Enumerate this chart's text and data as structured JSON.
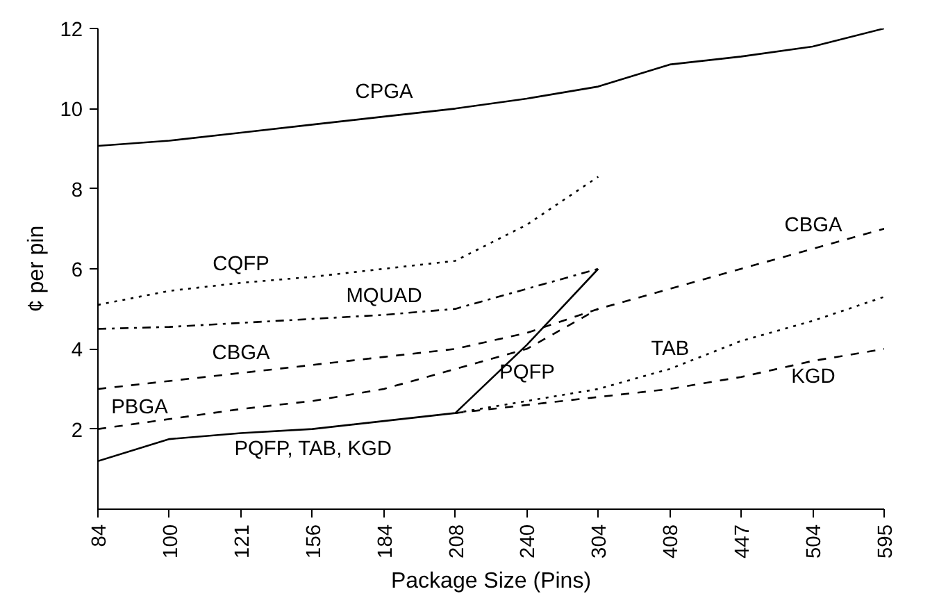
{
  "chart_data": {
    "type": "line",
    "xlabel": "Package Size (Pins)",
    "ylabel": "¢ per pin",
    "categories": [
      "84",
      "100",
      "121",
      "156",
      "184",
      "208",
      "240",
      "304",
      "408",
      "447",
      "504",
      "595"
    ],
    "ylim": [
      0,
      12
    ],
    "yticks": [
      2,
      4,
      6,
      8,
      10,
      12
    ],
    "grid": false,
    "marker": "none",
    "series": [
      {
        "color": "#000000",
        "line_style": "solid",
        "values": [
          9.07,
          9.2,
          9.4,
          9.6,
          9.8,
          10.0,
          10.25,
          10.55,
          11.1,
          11.3,
          11.55,
          12.0
        ]
      },
      {
        "color": "#000000",
        "line_style": "dotted",
        "values": [
          5.1,
          5.45,
          5.65,
          5.8,
          6.0,
          6.2,
          7.1,
          8.3,
          null,
          null,
          null,
          null
        ]
      },
      {
        "color": "#000000",
        "line_style": "dashdot",
        "values": [
          4.5,
          4.55,
          4.65,
          4.75,
          4.85,
          5.0,
          5.5,
          6.0,
          null,
          null,
          null,
          null
        ]
      },
      {
        "color": "#000000",
        "line_style": "dashed",
        "values": [
          3.0,
          3.2,
          3.4,
          3.6,
          3.8,
          4.0,
          4.4,
          5.0,
          5.5,
          6.0,
          6.5,
          7.0
        ]
      },
      {
        "color": "#000000",
        "line_style": "dashed",
        "values": [
          2.0,
          2.25,
          2.5,
          2.7,
          3.0,
          3.5,
          4.0,
          5.0,
          null,
          null,
          null,
          null
        ]
      },
      {
        "color": "#000000",
        "line_style": "solid",
        "values": [
          1.2,
          1.75,
          1.9,
          2.0,
          2.2,
          2.4,
          4.1,
          6.0,
          null,
          null,
          null,
          null
        ]
      },
      {
        "color": "#000000",
        "line_style": "dotted",
        "values": [
          null,
          null,
          null,
          null,
          null,
          2.4,
          2.7,
          3.0,
          3.5,
          4.2,
          4.7,
          5.3
        ]
      },
      {
        "color": "#000000",
        "line_style": "dashed",
        "values": [
          null,
          null,
          null,
          null,
          null,
          2.4,
          2.6,
          2.8,
          3.0,
          3.3,
          3.7,
          4.0
        ]
      }
    ],
    "annotations": [
      "CPGA",
      "CQFP",
      "MQUAD",
      "CBGA",
      "PBGA",
      "PQFP, TAB, KGD",
      "PQFP",
      "TAB",
      "KGD",
      "CBGA"
    ]
  }
}
